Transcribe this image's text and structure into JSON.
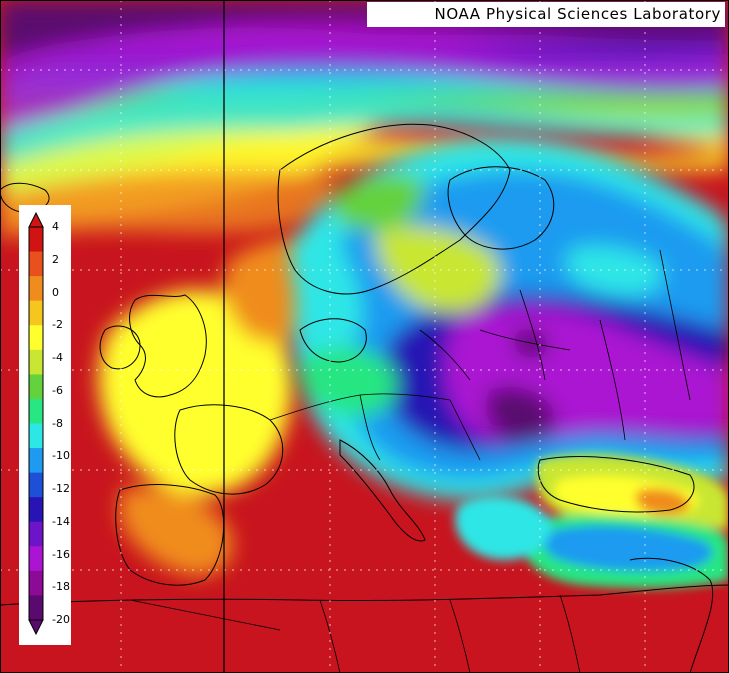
{
  "credit": "NOAA Physical Sciences Laboratory",
  "legend": {
    "ticks": [
      "4",
      "2",
      "0",
      "-2",
      "-4",
      "-6",
      "-8",
      "-10",
      "-12",
      "-14",
      "-16",
      "-18",
      "-20"
    ],
    "colors": [
      "#d01414",
      "#e8501e",
      "#f08c1e",
      "#f5c61e",
      "#ffff2d",
      "#c8e632",
      "#64d23c",
      "#28e682",
      "#2de6e6",
      "#1e9bf0",
      "#1e50d7",
      "#2814b4",
      "#6e14c8",
      "#aa14d2",
      "#8c0a96",
      "#5a0a6e"
    ]
  },
  "map": {
    "region": "Europe",
    "meridian_line": true,
    "grid": true,
    "colors": {
      "ocean_warm": "#c8141e",
      "cold_core": "#5a0a6e"
    }
  }
}
